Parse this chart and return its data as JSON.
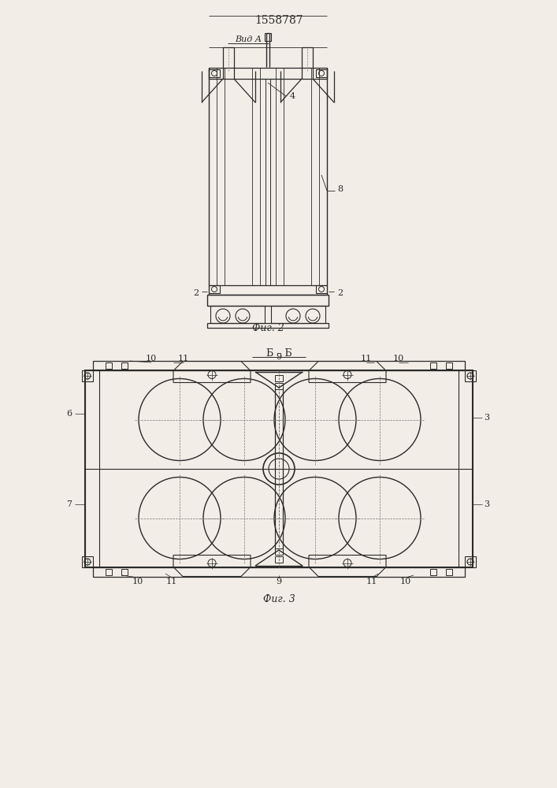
{
  "title": "1558787",
  "bg_color": "#f2ede6",
  "line_color": "#2a2a2a",
  "fig_width": 7.07,
  "fig_height": 10.0,
  "fig2_label": "Вид А",
  "fig2_caption": "Фиг. 2",
  "fig3_caption": "Фиг. 3",
  "fig3_section_label": "Б – Б"
}
